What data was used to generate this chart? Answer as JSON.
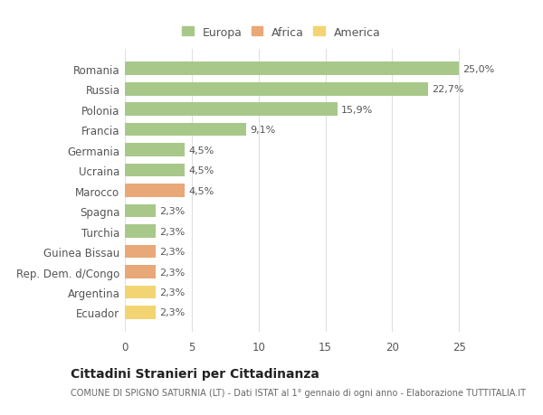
{
  "categories": [
    "Ecuador",
    "Argentina",
    "Rep. Dem. d/Congo",
    "Guinea Bissau",
    "Turchia",
    "Spagna",
    "Marocco",
    "Ucraina",
    "Germania",
    "Francia",
    "Polonia",
    "Russia",
    "Romania"
  ],
  "values": [
    2.3,
    2.3,
    2.3,
    2.3,
    2.3,
    2.3,
    4.5,
    4.5,
    4.5,
    9.1,
    15.9,
    22.7,
    25.0
  ],
  "labels": [
    "2,3%",
    "2,3%",
    "2,3%",
    "2,3%",
    "2,3%",
    "2,3%",
    "4,5%",
    "4,5%",
    "4,5%",
    "9,1%",
    "15,9%",
    "22,7%",
    "25,0%"
  ],
  "colors": [
    "#f2d472",
    "#f2d472",
    "#e8a878",
    "#e8a878",
    "#a8c88a",
    "#a8c88a",
    "#e8a878",
    "#a8c88a",
    "#a8c88a",
    "#a8c88a",
    "#a8c88a",
    "#a8c88a",
    "#a8c88a"
  ],
  "legend_labels": [
    "Europa",
    "Africa",
    "America"
  ],
  "legend_colors": [
    "#a8c88a",
    "#e8a878",
    "#f2d472"
  ],
  "title": "Cittadini Stranieri per Cittadinanza",
  "subtitle": "COMUNE DI SPIGNO SATURNIA (LT) - Dati ISTAT al 1° gennaio di ogni anno - Elaborazione TUTTITALIA.IT",
  "xlim": [
    0,
    26
  ],
  "xticks": [
    0,
    5,
    10,
    15,
    20,
    25
  ],
  "background_color": "#ffffff",
  "grid_color": "#e0e0e0",
  "bar_height": 0.65
}
